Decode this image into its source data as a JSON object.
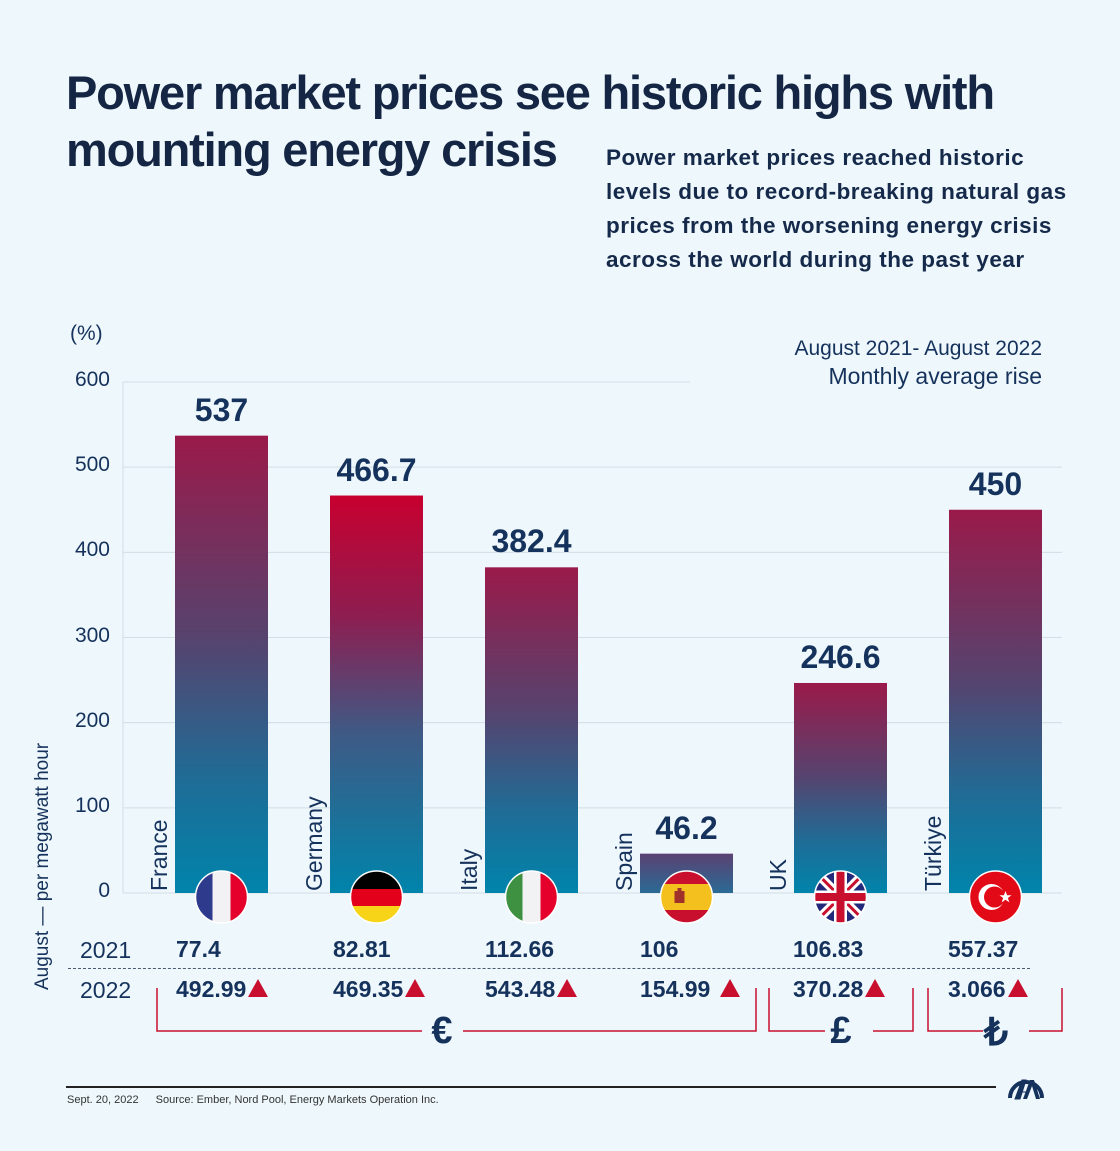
{
  "header": {
    "title_line1": "Power market prices see historic highs with",
    "title_line2": "mounting energy crisis",
    "subtitle": "Power market prices reached historic levels due to record-breaking natural gas prices from the worsening energy crisis across the world during the past year"
  },
  "period": {
    "range": "August 2021- August 2022",
    "measure": "Monthly average rise"
  },
  "chart_data": {
    "type": "bar",
    "title": "Power market prices see historic highs with mounting energy crisis",
    "subtitle": "August 2021- August 2022 Monthly average rise",
    "ylabel": "(%)",
    "xlabel": "",
    "ylim": [
      0,
      600
    ],
    "yticks": [
      "0",
      "100",
      "200",
      "300",
      "400",
      "500",
      "600"
    ],
    "grid": true,
    "categories": [
      "France",
      "Germany",
      "Italy",
      "Spain",
      "UK",
      "Türkiye"
    ],
    "values": [
      537,
      466.7,
      382.4,
      46.2,
      246.6,
      450
    ],
    "value_labels": [
      "537",
      "466.7",
      "382.4",
      "46.2",
      "246.6",
      "450"
    ],
    "colors": {
      "gradient_top": "#9a1a4a",
      "gradient_bottom": "#0084ab",
      "germany_top": "#c8002f",
      "text": "#15325c",
      "accent_red": "#c8102e"
    }
  },
  "table": {
    "axis_title": "August — per megawatt hour",
    "rows": [
      {
        "year": "2021",
        "values": [
          "77.4",
          "82.81",
          "112.66",
          "106",
          "106.83",
          "557.37"
        ]
      },
      {
        "year": "2022",
        "values": [
          "492.99",
          "469.35",
          "543.48",
          "154.99",
          "370.28",
          "3.066"
        ]
      }
    ],
    "rise_icon": "up-triangle-icon",
    "currencies": [
      {
        "symbol": "€",
        "name": "euro",
        "covers": [
          "France",
          "Germany",
          "Italy",
          "Spain"
        ]
      },
      {
        "symbol": "£",
        "name": "pound",
        "covers": [
          "UK"
        ]
      },
      {
        "symbol": "₺",
        "name": "lira",
        "covers": [
          "Türkiye"
        ]
      }
    ]
  },
  "flags": [
    "france-flag-icon",
    "germany-flag-icon",
    "italy-flag-icon",
    "spain-flag-icon",
    "uk-flag-icon",
    "turkiye-flag-icon"
  ],
  "footer": {
    "date": "Sept. 20, 2022",
    "source": "Source: Ember, Nord Pool, Energy Markets Operation Inc.",
    "logo": "anadolu-agency-logo"
  }
}
